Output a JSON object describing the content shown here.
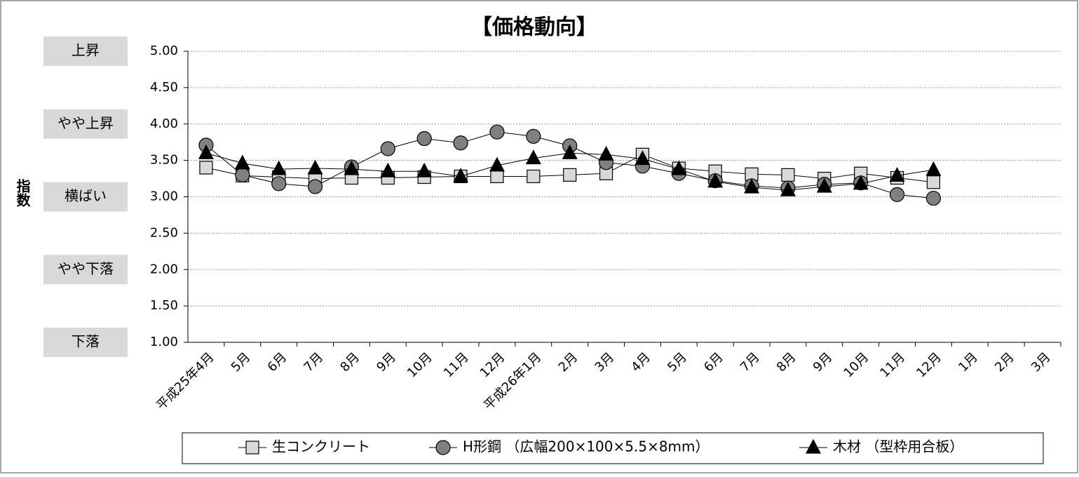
{
  "chart_data": {
    "type": "line",
    "title": "【価格動向】",
    "y_label": "指数",
    "categories": [
      "平成25年4月",
      "5月",
      "6月",
      "7月",
      "8月",
      "9月",
      "10月",
      "11月",
      "12月",
      "平成26年1月",
      "2月",
      "3月",
      "4月",
      "5月",
      "6月",
      "7月",
      "8月",
      "9月",
      "10月",
      "11月",
      "12月",
      "1月",
      "2月",
      "3月"
    ],
    "series": [
      {
        "name": "生コンクリート",
        "color": "#d9d9d9",
        "marker": "square",
        "values": [
          3.4,
          3.29,
          3.27,
          3.25,
          3.26,
          3.26,
          3.27,
          3.28,
          3.28,
          3.28,
          3.3,
          3.32,
          3.58,
          3.39,
          3.35,
          3.31,
          3.3,
          3.25,
          3.32,
          3.26,
          3.2,
          null,
          null,
          null
        ]
      },
      {
        "name": "H形鋼 （広幅200×100×5.5×8mm）",
        "color": "#808080",
        "marker": "circle",
        "values": [
          3.71,
          3.3,
          3.18,
          3.14,
          3.41,
          3.66,
          3.8,
          3.74,
          3.89,
          3.83,
          3.7,
          3.47,
          3.42,
          3.32,
          3.22,
          3.15,
          3.12,
          3.17,
          3.19,
          3.03,
          2.98,
          null,
          null,
          null
        ]
      },
      {
        "name": "木材 （型枠用合板）",
        "color": "#000000",
        "marker": "triangle",
        "values": [
          3.6,
          3.46,
          3.38,
          3.39,
          3.38,
          3.35,
          3.35,
          3.28,
          3.43,
          3.53,
          3.6,
          3.58,
          3.52,
          3.38,
          3.21,
          3.13,
          3.09,
          3.14,
          3.18,
          3.29,
          3.37,
          null,
          null,
          null
        ]
      }
    ],
    "ylim": [
      1,
      5
    ],
    "yticks": [
      {
        "value": 1,
        "label": "1.00"
      },
      {
        "value": 1.5,
        "label": "1.50"
      },
      {
        "value": 2,
        "label": "2.00"
      },
      {
        "value": 2.5,
        "label": "2.50"
      },
      {
        "value": 3,
        "label": "3.00"
      },
      {
        "value": 3.5,
        "label": "3.50"
      },
      {
        "value": 4,
        "label": "4.00"
      },
      {
        "value": 4.5,
        "label": "4.50"
      },
      {
        "value": 5,
        "label": "5.00"
      }
    ],
    "level_labels": [
      {
        "value": 5,
        "label": "上昇"
      },
      {
        "value": 4,
        "label": "やや上昇"
      },
      {
        "value": 3,
        "label": "横ばい"
      },
      {
        "value": 2,
        "label": "やや下落"
      },
      {
        "value": 1,
        "label": "下落"
      }
    ],
    "grid": true,
    "legend": "bottom"
  }
}
